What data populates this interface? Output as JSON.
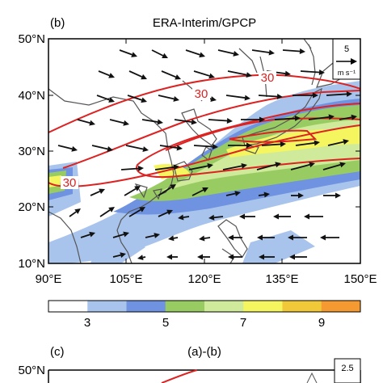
{
  "panel_b": {
    "letter": "(b)",
    "title": "ERA-Interim/GPCP",
    "lat_labels": [
      "50°N",
      "40°N",
      "30°N",
      "20°N",
      "10°N"
    ],
    "lon_labels": [
      "90°E",
      "105°E",
      "120°E",
      "135°E",
      "150°E"
    ],
    "contour_labels": [
      "30",
      "30",
      "30"
    ],
    "ref_vector": {
      "value": "5",
      "unit": "m s⁻¹"
    }
  },
  "colorbar": {
    "tick_labels": [
      "3",
      "5",
      "7",
      "9"
    ],
    "colors": [
      "#ffffff",
      "#a9c4ec",
      "#6f93e0",
      "#98cc62",
      "#ceea9a",
      "#f5f560",
      "#f0c838",
      "#f59a30"
    ]
  },
  "panel_c": {
    "letter": "(c)",
    "title": "(a)-(b)",
    "lat_label_top": "50°N",
    "ref_vector": {
      "value": "2.5"
    }
  },
  "colors": {
    "contour": "#dd2222",
    "coastline": "#555555",
    "vector": "#111111"
  },
  "chart_data": {
    "type": "map",
    "lon_range": [
      90,
      150
    ],
    "lat_range": [
      10,
      50
    ],
    "lon_ticks": [
      90,
      105,
      120,
      135,
      150
    ],
    "lat_ticks": [
      10,
      20,
      30,
      40,
      50
    ],
    "fill_levels": [
      3,
      4,
      5,
      6,
      7,
      8,
      9
    ],
    "contour_values": [
      30,
      30,
      30
    ]
  }
}
